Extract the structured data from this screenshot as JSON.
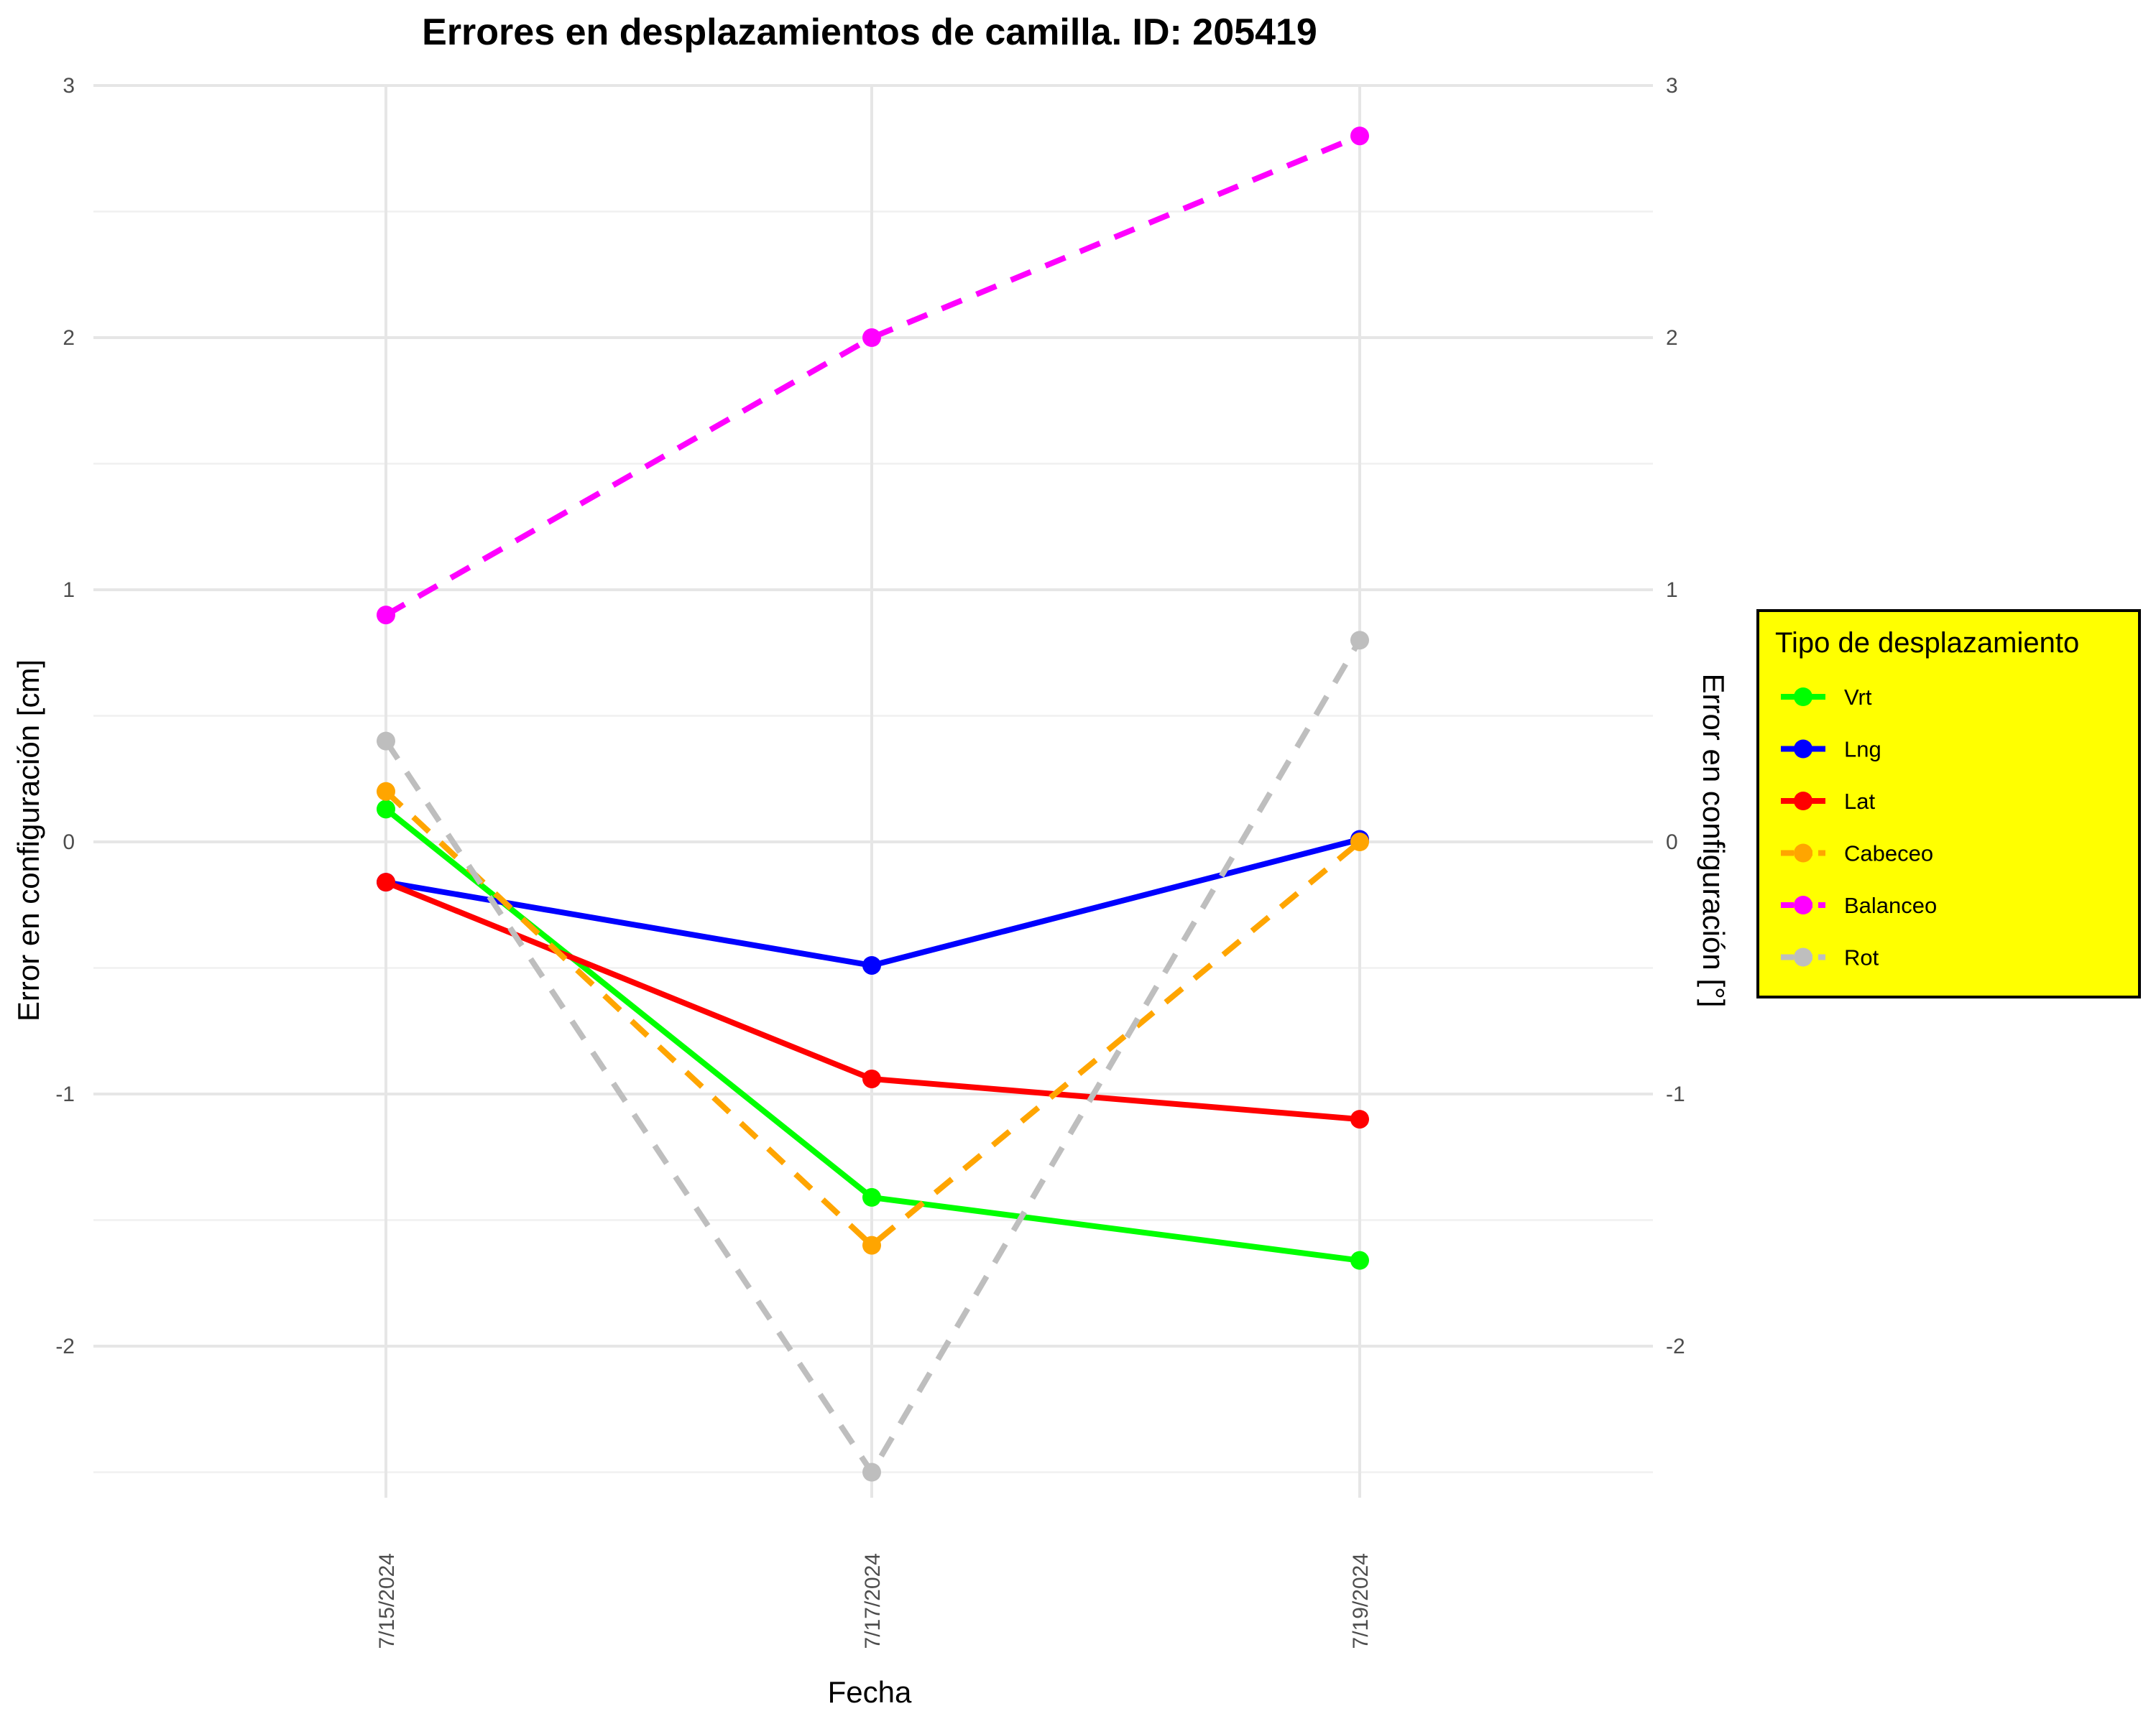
{
  "chart_data": {
    "type": "line",
    "title": "Errores en desplazamientos de camilla. ID: 205419",
    "xlabel": "Fecha",
    "ylabel": "Error en configuración [cm]",
    "ylabel_right": "Error en configuración [°]",
    "categories": [
      "7/15/2024",
      "7/17/2024",
      "7/19/2024"
    ],
    "ylim": [
      -2.6,
      3.0
    ],
    "yticks": [
      -2,
      -1,
      0,
      1,
      2,
      3
    ],
    "ytick_labels": [
      "-2",
      "-1",
      "0",
      "1",
      "2",
      "3"
    ],
    "grid": true,
    "legend": {
      "title": "Tipo de desplazamiento",
      "position": "right",
      "background": "#ffff00"
    },
    "series": [
      {
        "name": "Vrt",
        "values": [
          0.13,
          -1.41,
          -1.66
        ],
        "color": "#00ff00",
        "dash": "solid"
      },
      {
        "name": "Lng",
        "values": [
          -0.16,
          -0.49,
          0.01
        ],
        "color": "#0000ff",
        "dash": "solid"
      },
      {
        "name": "Lat",
        "values": [
          -0.16,
          -0.94,
          -1.1
        ],
        "color": "#ff0000",
        "dash": "solid"
      },
      {
        "name": "Cabeceo",
        "values": [
          0.2,
          -1.6,
          0.0
        ],
        "color": "#ffa500",
        "dash": "dashed"
      },
      {
        "name": "Balanceo",
        "values": [
          0.9,
          2.0,
          2.8
        ],
        "color": "#ff00ff",
        "dash": "dashed"
      },
      {
        "name": "Rot",
        "values": [
          0.4,
          -2.5,
          0.8
        ],
        "color": "#bebebe",
        "dash": "dashed"
      }
    ]
  }
}
